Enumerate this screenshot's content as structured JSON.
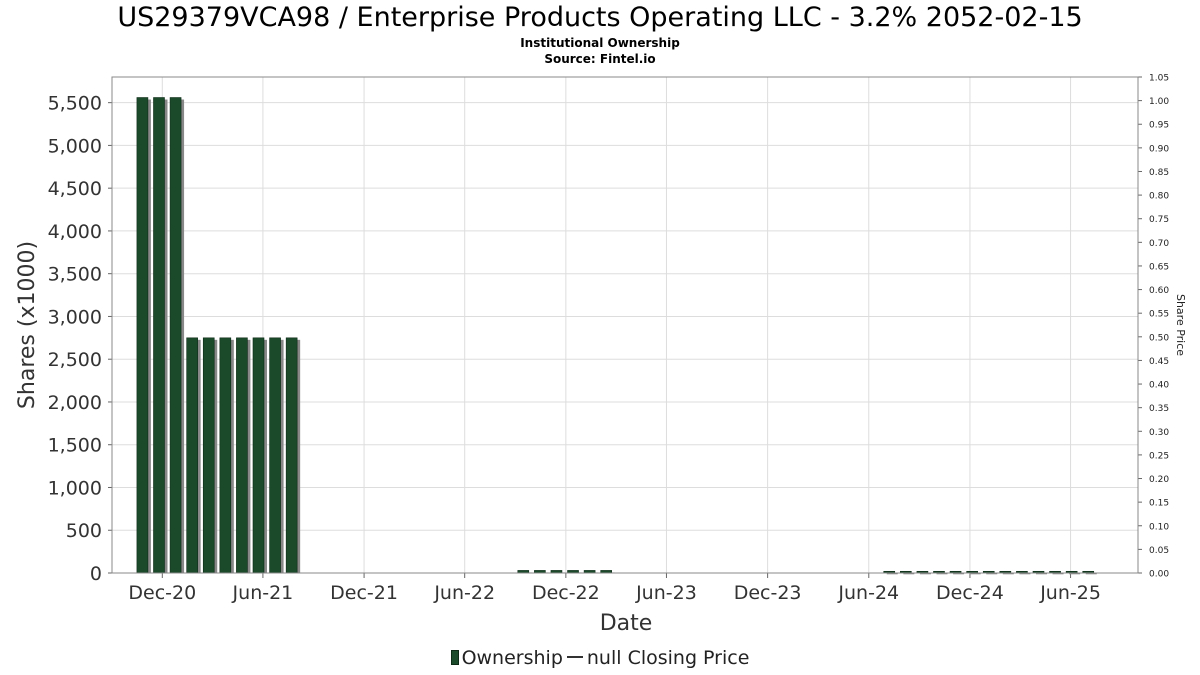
{
  "header": {
    "title": "US29379VCA98 / Enterprise Products Operating LLC - 3.2% 2052-02-15",
    "subtitle": "Institutional Ownership",
    "source": "Source: Fintel.io"
  },
  "legend": {
    "ownership_label": "Ownership",
    "price_label": "null Closing Price"
  },
  "colors": {
    "bar": "#1a4a2a",
    "bar_shadow": "#888888",
    "grid": "#dddddd"
  },
  "chart_data": {
    "type": "bar",
    "xlabel": "Date",
    "ylabel": "Shares (x1000)",
    "y2label": "Share Price",
    "ylim": [
      0,
      5800
    ],
    "y2lim": [
      0,
      1.05
    ],
    "yticks": [
      0,
      500,
      1000,
      1500,
      2000,
      2500,
      3000,
      3500,
      4000,
      4500,
      5000,
      5500
    ],
    "ytick_labels": [
      "0",
      "500",
      "1,000",
      "1,500",
      "2,000",
      "2,500",
      "3,000",
      "3,500",
      "4,000",
      "4,500",
      "5,000",
      "5,500"
    ],
    "y2ticks": [
      "0.00",
      "0.05",
      "0.10",
      "0.15",
      "0.20",
      "0.25",
      "0.30",
      "0.35",
      "0.40",
      "0.45",
      "0.50",
      "0.55",
      "0.60",
      "0.65",
      "0.70",
      "0.75",
      "0.80",
      "0.85",
      "0.90",
      "0.95",
      "1.00",
      "1.05"
    ],
    "xticks": [
      "Dec-20",
      "Jun-21",
      "Dec-21",
      "Jun-22",
      "Dec-22",
      "Jun-23",
      "Dec-23",
      "Jun-24",
      "Dec-24",
      "Jun-25"
    ],
    "x_start": "2020-09-01",
    "x_end": "2025-10-01",
    "grid": true,
    "legend_position": "bottom",
    "series": [
      {
        "name": "Ownership",
        "points": [
          {
            "date": "2020-10-26",
            "value": 5560
          },
          {
            "date": "2020-11-25",
            "value": 5560
          },
          {
            "date": "2020-12-25",
            "value": 5560
          },
          {
            "date": "2021-01-24",
            "value": 2750
          },
          {
            "date": "2021-02-23",
            "value": 2750
          },
          {
            "date": "2021-03-25",
            "value": 2750
          },
          {
            "date": "2021-04-24",
            "value": 2750
          },
          {
            "date": "2021-05-24",
            "value": 2750
          },
          {
            "date": "2021-06-23",
            "value": 2750
          },
          {
            "date": "2021-07-23",
            "value": 2750
          },
          {
            "date": "2022-09-15",
            "value": 30
          },
          {
            "date": "2022-10-15",
            "value": 30
          },
          {
            "date": "2022-11-14",
            "value": 30
          },
          {
            "date": "2022-12-14",
            "value": 30
          },
          {
            "date": "2023-01-13",
            "value": 30
          },
          {
            "date": "2023-02-12",
            "value": 30
          },
          {
            "date": "2024-07-08",
            "value": 20
          },
          {
            "date": "2024-08-07",
            "value": 20
          },
          {
            "date": "2024-09-06",
            "value": 20
          },
          {
            "date": "2024-10-06",
            "value": 20
          },
          {
            "date": "2024-11-05",
            "value": 20
          },
          {
            "date": "2024-12-05",
            "value": 20
          },
          {
            "date": "2025-01-04",
            "value": 20
          },
          {
            "date": "2025-02-03",
            "value": 20
          },
          {
            "date": "2025-03-05",
            "value": 20
          },
          {
            "date": "2025-04-04",
            "value": 20
          },
          {
            "date": "2025-05-04",
            "value": 20
          },
          {
            "date": "2025-06-03",
            "value": 20
          },
          {
            "date": "2025-07-03",
            "value": 20
          }
        ]
      }
    ]
  }
}
